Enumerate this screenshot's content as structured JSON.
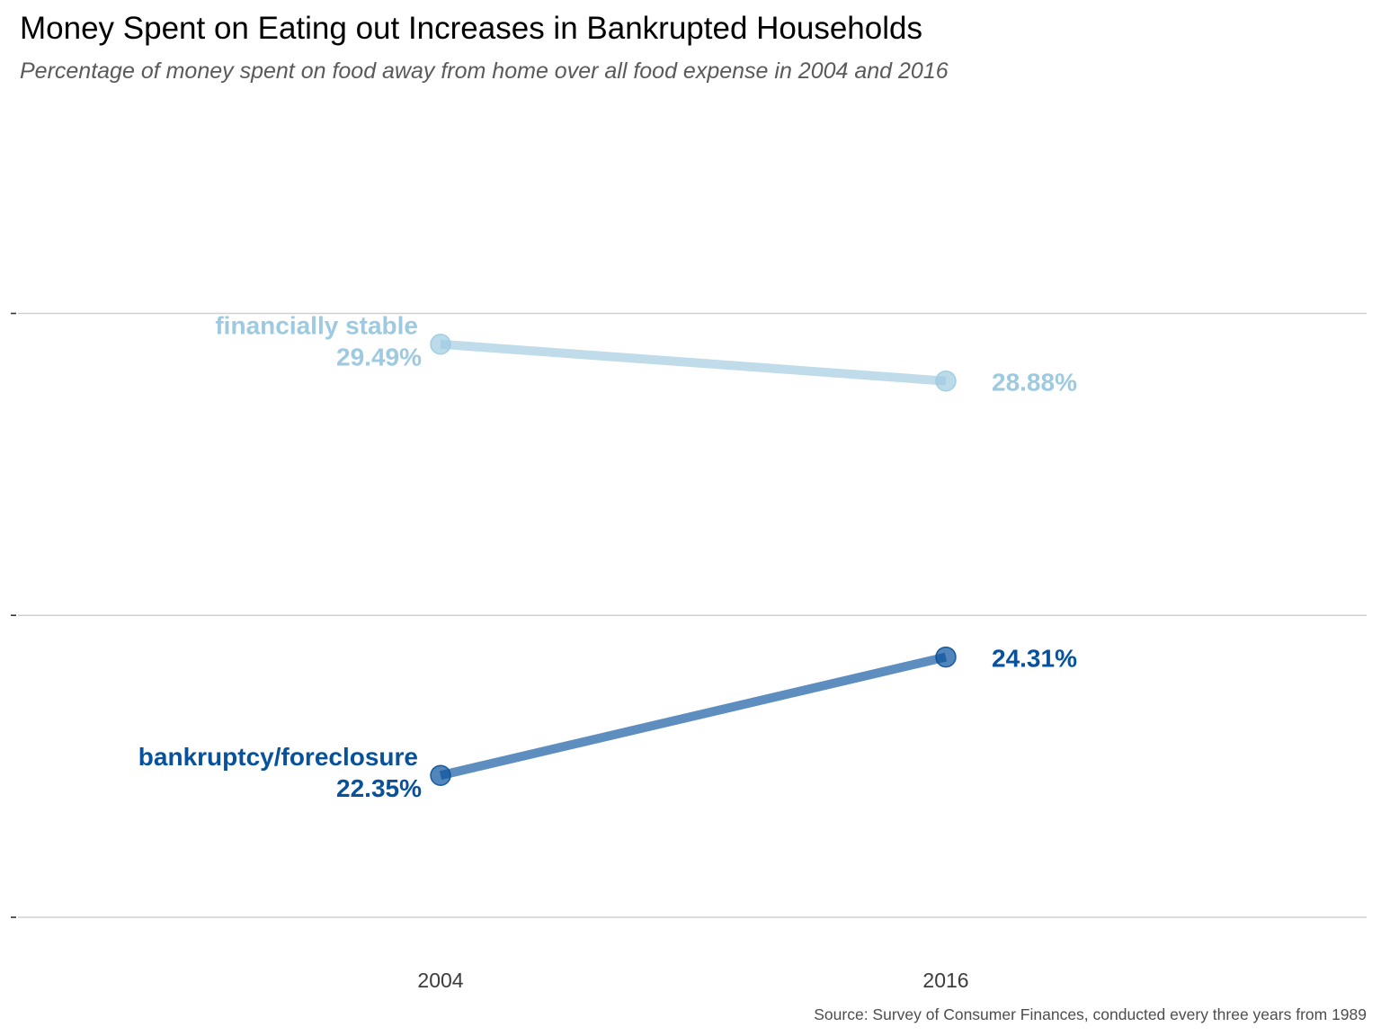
{
  "title": "Money Spent on Eating out Increases in Bankrupted Households",
  "subtitle": "Percentage of money spent on food away from home over all food expense in 2004 and 2016",
  "caption": "Source: Survey of Consumer Finances, conducted every three years from 1989",
  "chart_data": {
    "type": "line",
    "chart_style": "slope",
    "title": "Money Spent on Eating out Increases in Bankrupted Households",
    "subtitle": "Percentage of money spent on food away from home over all food expense in 2004 and 2016",
    "xlabel": "",
    "ylabel": "",
    "x": [
      "2004",
      "2016"
    ],
    "ylim": [
      20,
      30
    ],
    "grid": true,
    "legend": "none",
    "series": [
      {
        "name": "financially stable",
        "values": [
          29.49,
          28.88
        ],
        "labels": [
          "29.49%",
          "28.88%"
        ],
        "color": "#9ECAE1"
      },
      {
        "name": "bankruptcy/foreclosure",
        "values": [
          22.35,
          24.31
        ],
        "labels": [
          "22.35%",
          "24.31%"
        ],
        "color": "#08519C"
      }
    ]
  }
}
